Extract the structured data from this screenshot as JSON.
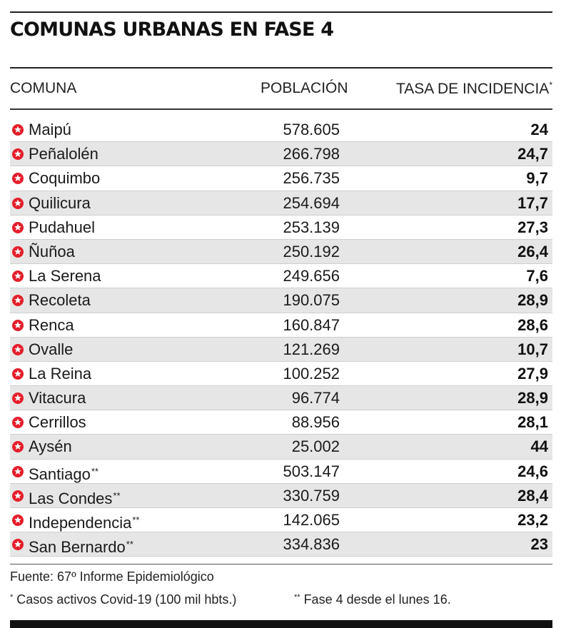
{
  "title": "COMUNAS URBANAS EN FASE 4",
  "columns": {
    "comuna": "COMUNA",
    "poblacion": "POBLACIÓN",
    "tasa": "TASA DE INCIDENCIA",
    "tasa_mark": "*"
  },
  "colors": {
    "icon": "#e41e2b",
    "row_alt": "#e6e6e6"
  },
  "icon_name": "star-in-red-circle-icon",
  "chart_data": {
    "type": "table",
    "title": "COMUNAS URBANAS EN FASE 4",
    "columns": [
      "COMUNA",
      "POBLACIÓN",
      "TASA DE INCIDENCIA*"
    ],
    "rows": [
      {
        "comuna": "Maipú",
        "mark": "",
        "poblacion": "578.605",
        "tasa": "24"
      },
      {
        "comuna": "Peñalolén",
        "mark": "",
        "poblacion": "266.798",
        "tasa": "24,7"
      },
      {
        "comuna": "Coquimbo",
        "mark": "",
        "poblacion": "256.735",
        "tasa": "9,7"
      },
      {
        "comuna": "Quilicura",
        "mark": "",
        "poblacion": "254.694",
        "tasa": "17,7"
      },
      {
        "comuna": "Pudahuel",
        "mark": "",
        "poblacion": "253.139",
        "tasa": "27,3"
      },
      {
        "comuna": "Ñuñoa",
        "mark": "",
        "poblacion": "250.192",
        "tasa": "26,4"
      },
      {
        "comuna": "La Serena",
        "mark": "",
        "poblacion": "249.656",
        "tasa": "7,6"
      },
      {
        "comuna": "Recoleta",
        "mark": "",
        "poblacion": "190.075",
        "tasa": "28,9"
      },
      {
        "comuna": "Renca",
        "mark": "",
        "poblacion": "160.847",
        "tasa": "28,6"
      },
      {
        "comuna": "Ovalle",
        "mark": "",
        "poblacion": "121.269",
        "tasa": "10,7"
      },
      {
        "comuna": "La Reina",
        "mark": "",
        "poblacion": "100.252",
        "tasa": "27,9"
      },
      {
        "comuna": "Vitacura",
        "mark": "",
        "poblacion": "96.774",
        "tasa": "28,9"
      },
      {
        "comuna": "Cerrillos",
        "mark": "",
        "poblacion": "88.956",
        "tasa": "28,1"
      },
      {
        "comuna": "Aysén",
        "mark": "",
        "poblacion": "25.002",
        "tasa": "44"
      },
      {
        "comuna": "Santiago",
        "mark": "**",
        "poblacion": "503.147",
        "tasa": "24,6"
      },
      {
        "comuna": "Las Condes",
        "mark": "**",
        "poblacion": "330.759",
        "tasa": "28,4"
      },
      {
        "comuna": "Independencia",
        "mark": "**",
        "poblacion": "142.065",
        "tasa": "23,2"
      },
      {
        "comuna": "San Bernardo",
        "mark": "**",
        "poblacion": "334.836",
        "tasa": "23"
      }
    ]
  },
  "source": "Fuente: 67º Informe Epidemiológico",
  "footnote1": {
    "mark": "*",
    "text": " Casos activos Covid-19 (100 mil hbts.)"
  },
  "footnote2": {
    "mark": "**",
    "text": " Fase 4 desde el lunes 16."
  }
}
